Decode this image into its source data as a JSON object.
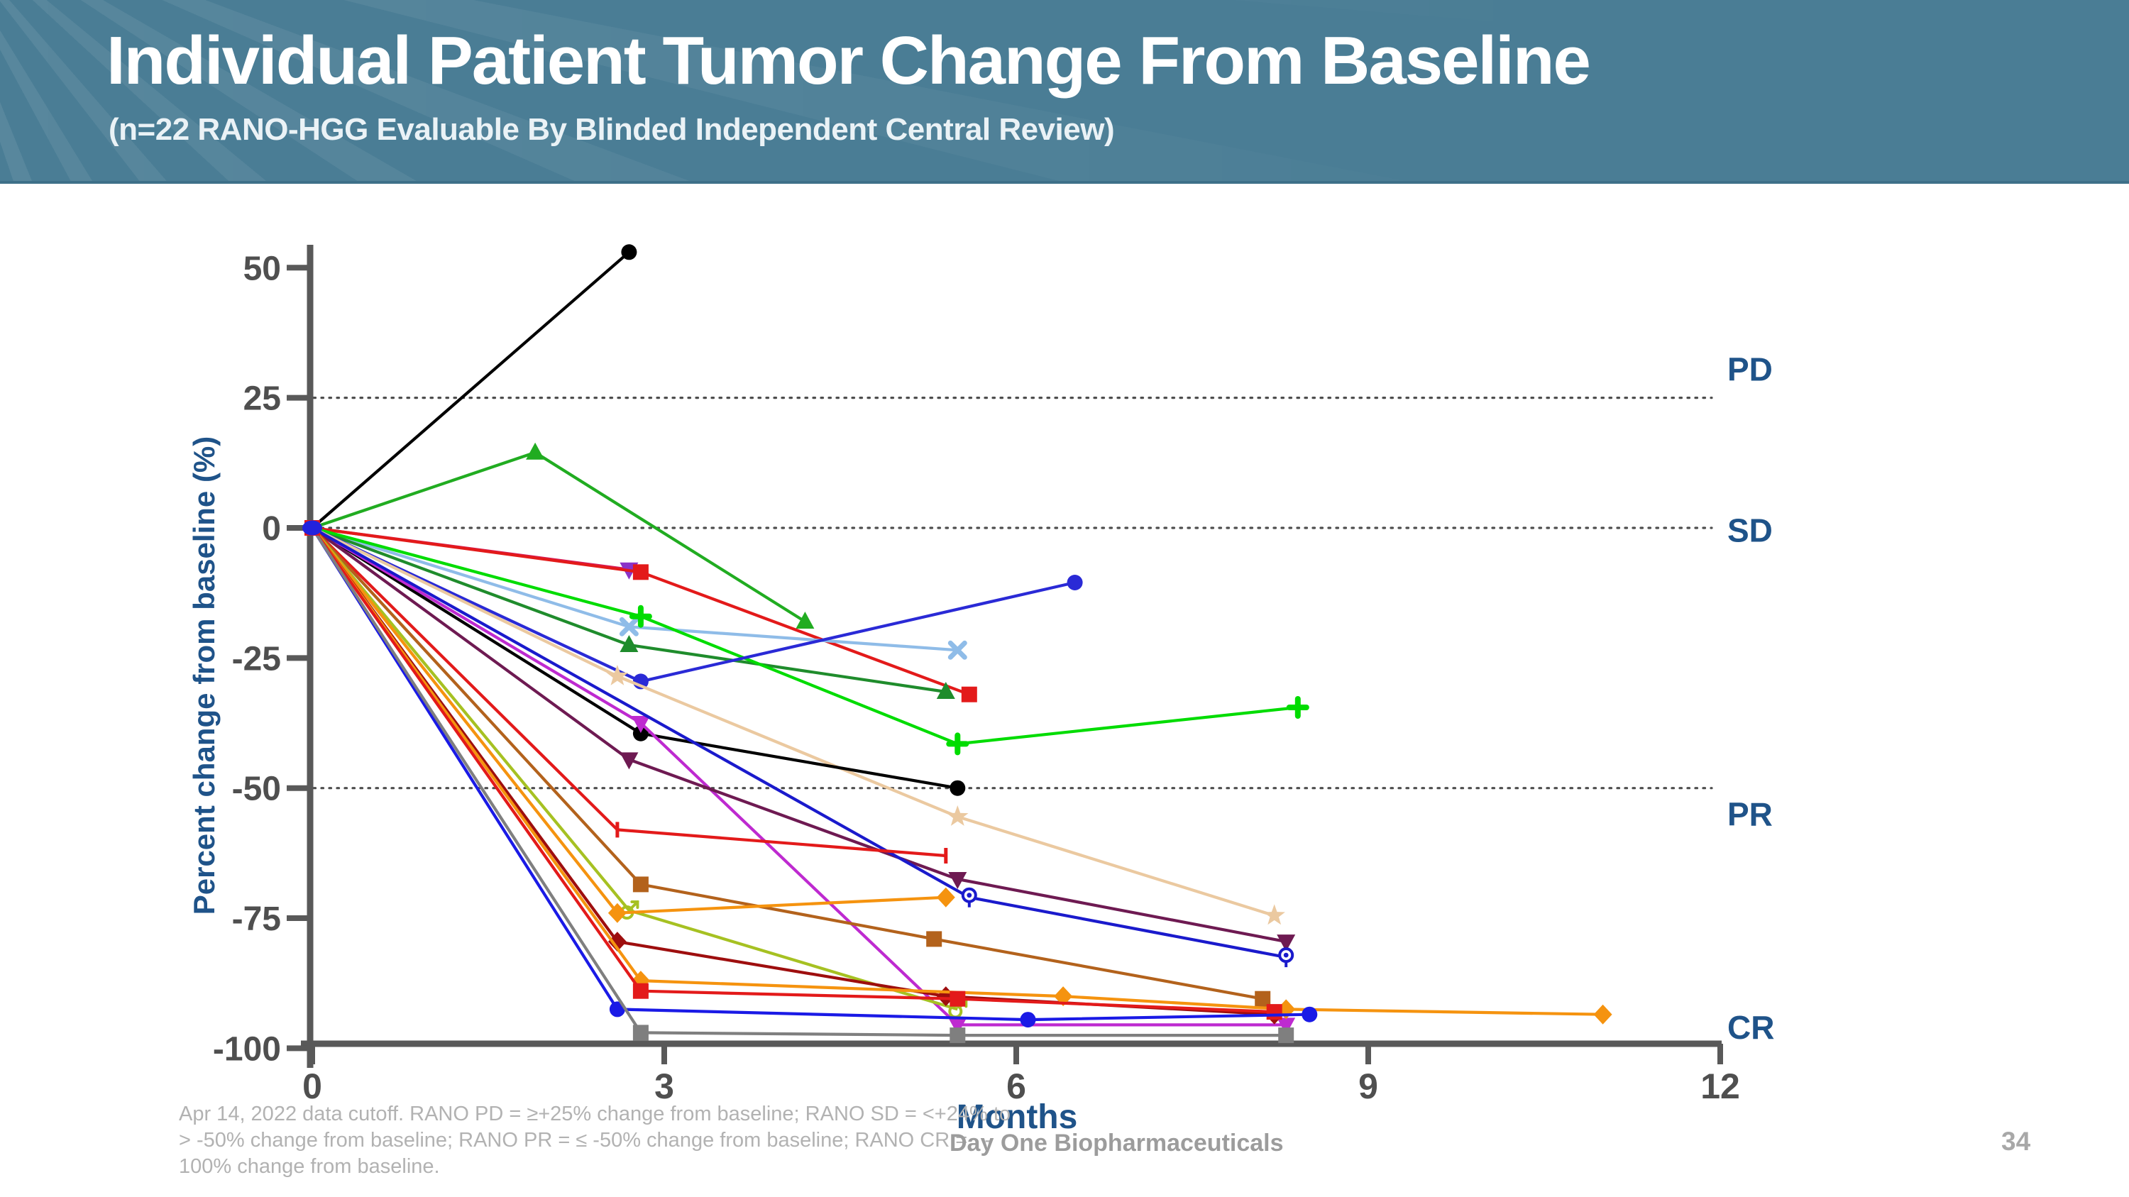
{
  "header": {
    "title": "Individual Patient Tumor Change From Baseline",
    "subtitle": "(n=22 RANO-HGG Evaluable By Blinded Independent Central Review)"
  },
  "chart_data": {
    "type": "line",
    "title": "Individual Patient Tumor Change From Baseline",
    "xlabel": "Months",
    "ylabel": "Percent change from baseline (%)",
    "xlim": [
      0,
      12
    ],
    "ylim": [
      -100,
      55
    ],
    "xticks": [
      0,
      3,
      6,
      9,
      12
    ],
    "yticks": [
      50,
      25,
      0,
      -25,
      -50,
      -75,
      -100
    ],
    "grid": "dotted horizontal reference lines at +25, 0, -50",
    "axis_color": "#595959",
    "label_color": "#1F5389",
    "reference_lines": [
      {
        "value": 25,
        "label": "PD",
        "dotted": true
      },
      {
        "value": 0,
        "label": "SD",
        "dotted": true
      },
      {
        "value": -50,
        "label": "PR",
        "dotted": true
      },
      {
        "value": -100,
        "label": "CR",
        "dotted": false
      }
    ],
    "response_labels": [
      {
        "text": "PD",
        "y": 30.5
      },
      {
        "text": "SD",
        "y": -0.5
      },
      {
        "text": "PR",
        "y": -55
      },
      {
        "text": "CR",
        "y": -96
      }
    ],
    "series": [
      {
        "name": "patient-1",
        "color": "#000000",
        "marker": "circle",
        "points": [
          [
            0,
            0
          ],
          [
            2.7,
            53
          ]
        ]
      },
      {
        "name": "patient-2",
        "color": "#21AC21",
        "marker": "triangle-up",
        "points": [
          [
            0,
            0
          ],
          [
            1.9,
            14.5
          ],
          [
            4.2,
            -18
          ]
        ]
      },
      {
        "name": "patient-3",
        "color": "#D41A5C",
        "marker": "triangle-down",
        "marker_color": "#8A33C8",
        "points": [
          [
            0,
            0
          ],
          [
            2.7,
            -8
          ]
        ]
      },
      {
        "name": "patient-4",
        "color": "#E31A1A",
        "marker": "square",
        "points": [
          [
            0,
            0
          ],
          [
            2.8,
            -8.5
          ],
          [
            5.6,
            -32
          ]
        ]
      },
      {
        "name": "patient-5",
        "color": "#8FBCE8",
        "marker": "x",
        "points": [
          [
            0,
            0
          ],
          [
            2.7,
            -19
          ],
          [
            5.5,
            -23.5
          ]
        ]
      },
      {
        "name": "patient-6",
        "color": "#1F8C2C",
        "marker": "triangle-up",
        "points": [
          [
            0,
            0
          ],
          [
            2.7,
            -22.5
          ],
          [
            5.4,
            -31.5
          ]
        ]
      },
      {
        "name": "patient-7",
        "color": "#00DC00",
        "marker": "plus",
        "points": [
          [
            0,
            0
          ],
          [
            2.8,
            -17
          ],
          [
            5.5,
            -41.5
          ],
          [
            8.4,
            -34.5
          ]
        ]
      },
      {
        "name": "patient-8",
        "color": "#2A2AD6",
        "marker": "circle",
        "points": [
          [
            0,
            0
          ],
          [
            2.8,
            -29.5
          ],
          [
            6.5,
            -10.5
          ]
        ]
      },
      {
        "name": "patient-9",
        "color": "#EBC9A0",
        "marker": "star",
        "points": [
          [
            0,
            0
          ],
          [
            2.6,
            -28.5
          ],
          [
            5.5,
            -55.5
          ],
          [
            8.2,
            -74.5
          ]
        ]
      },
      {
        "name": "patient-10",
        "color": "#000000",
        "marker": "circle",
        "points": [
          [
            0,
            0
          ],
          [
            2.8,
            -39.5
          ],
          [
            5.5,
            -50
          ]
        ]
      },
      {
        "name": "patient-11",
        "color": "#BE2AD0",
        "marker": "triangle-down",
        "points": [
          [
            0,
            0
          ],
          [
            2.8,
            -37.5
          ],
          [
            5.5,
            -95.5
          ],
          [
            8.3,
            -95.5
          ]
        ]
      },
      {
        "name": "patient-12",
        "color": "#6E1A52",
        "marker": "triangle-down",
        "points": [
          [
            0,
            0
          ],
          [
            2.7,
            -44.5
          ],
          [
            5.5,
            -67.5
          ],
          [
            8.3,
            -79.5
          ]
        ]
      },
      {
        "name": "patient-13",
        "color": "#1A1ACC",
        "marker": "ocircle",
        "points": [
          [
            0,
            0
          ],
          [
            5.6,
            -71
          ],
          [
            8.3,
            -82.5
          ]
        ]
      },
      {
        "name": "patient-14",
        "color": "#E31A1A",
        "marker": "tick",
        "points": [
          [
            0,
            0
          ],
          [
            2.6,
            -58
          ],
          [
            5.4,
            -63
          ]
        ]
      },
      {
        "name": "patient-15",
        "color": "#B3621C",
        "marker": "square",
        "points": [
          [
            0,
            0
          ],
          [
            2.8,
            -68.5
          ],
          [
            5.3,
            -79
          ],
          [
            8.1,
            -90.5
          ]
        ]
      },
      {
        "name": "patient-16",
        "color": "#A6C122",
        "marker": "male",
        "points": [
          [
            0,
            0
          ],
          [
            2.7,
            -73.5
          ],
          [
            5.5,
            -92.5
          ]
        ]
      },
      {
        "name": "patient-17",
        "color": "#F5930F",
        "marker": "diamond",
        "points": [
          [
            0,
            0
          ],
          [
            2.6,
            -74
          ],
          [
            5.4,
            -71
          ]
        ]
      },
      {
        "name": "patient-18",
        "color": "#9E0E0E",
        "marker": "diamond",
        "points": [
          [
            0,
            0
          ],
          [
            2.6,
            -79.5
          ],
          [
            5.4,
            -90
          ],
          [
            8.2,
            -93.5
          ]
        ]
      },
      {
        "name": "patient-19",
        "color": "#F5930F",
        "marker": "diamond",
        "points": [
          [
            0,
            0
          ],
          [
            2.8,
            -87
          ],
          [
            6.4,
            -90
          ],
          [
            8.3,
            -92.5
          ],
          [
            11.0,
            -93.5
          ]
        ]
      },
      {
        "name": "patient-20",
        "color": "#E31A1A",
        "marker": "square",
        "points": [
          [
            0,
            0
          ],
          [
            2.8,
            -89
          ],
          [
            5.5,
            -90.5
          ],
          [
            8.2,
            -93
          ]
        ]
      },
      {
        "name": "patient-21",
        "color": "#1A1AE6",
        "marker": "circle",
        "points": [
          [
            0,
            0
          ],
          [
            2.6,
            -92.5
          ],
          [
            6.1,
            -94.5
          ],
          [
            8.5,
            -93.5
          ]
        ]
      },
      {
        "name": "patient-22",
        "color": "#7F7F7F",
        "marker": "square",
        "points": [
          [
            0,
            0
          ],
          [
            2.8,
            -97
          ],
          [
            5.5,
            -97.5
          ],
          [
            8.3,
            -97.5
          ]
        ]
      }
    ]
  },
  "footer": {
    "note_lines": [
      "Apr 14, 2022 data cutoff. RANO PD = ≥+25% change from baseline; RANO SD = <+24% to",
      "> -50% change from baseline; RANO PR = ≤ -50% change from baseline; RANO CR =   -",
      "100% change from baseline."
    ],
    "company": "Day One Biopharmaceuticals",
    "page": "34"
  }
}
